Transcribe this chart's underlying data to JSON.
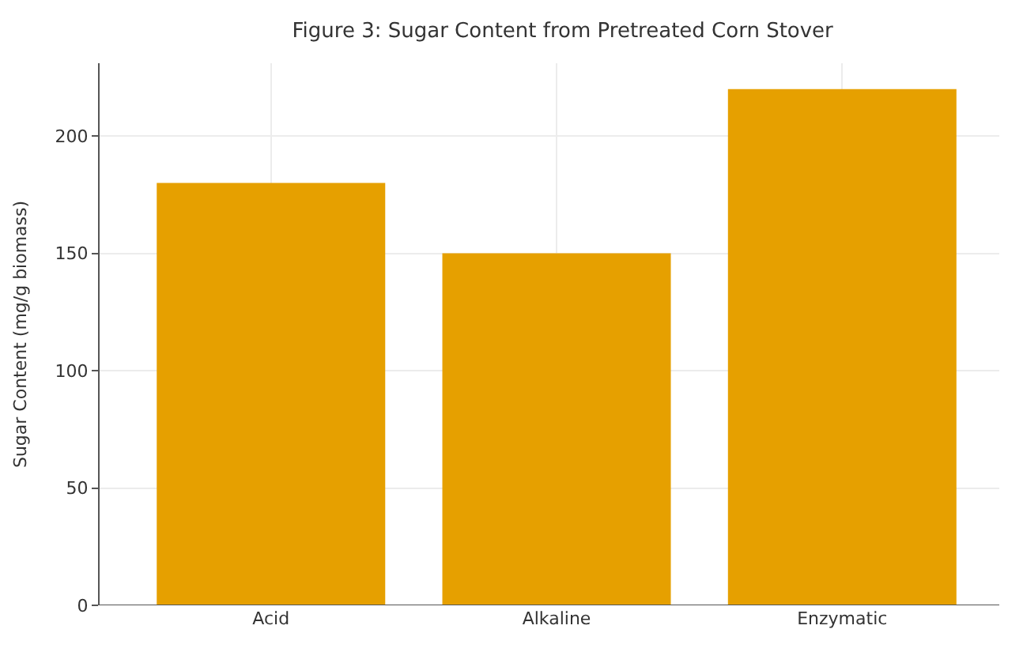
{
  "chart_data": {
    "type": "bar",
    "title": "Figure 3: Sugar Content from Pretreated Corn Stover",
    "ylabel": "Sugar Content (mg/g biomass)",
    "categories": [
      "Acid",
      "Alkaline",
      "Enzymatic"
    ],
    "values": [
      180,
      150,
      220
    ],
    "color": "#e6a000",
    "ylim": [
      0,
      231
    ],
    "yticks": [
      0,
      50,
      100,
      150,
      200
    ],
    "grid": true
  }
}
